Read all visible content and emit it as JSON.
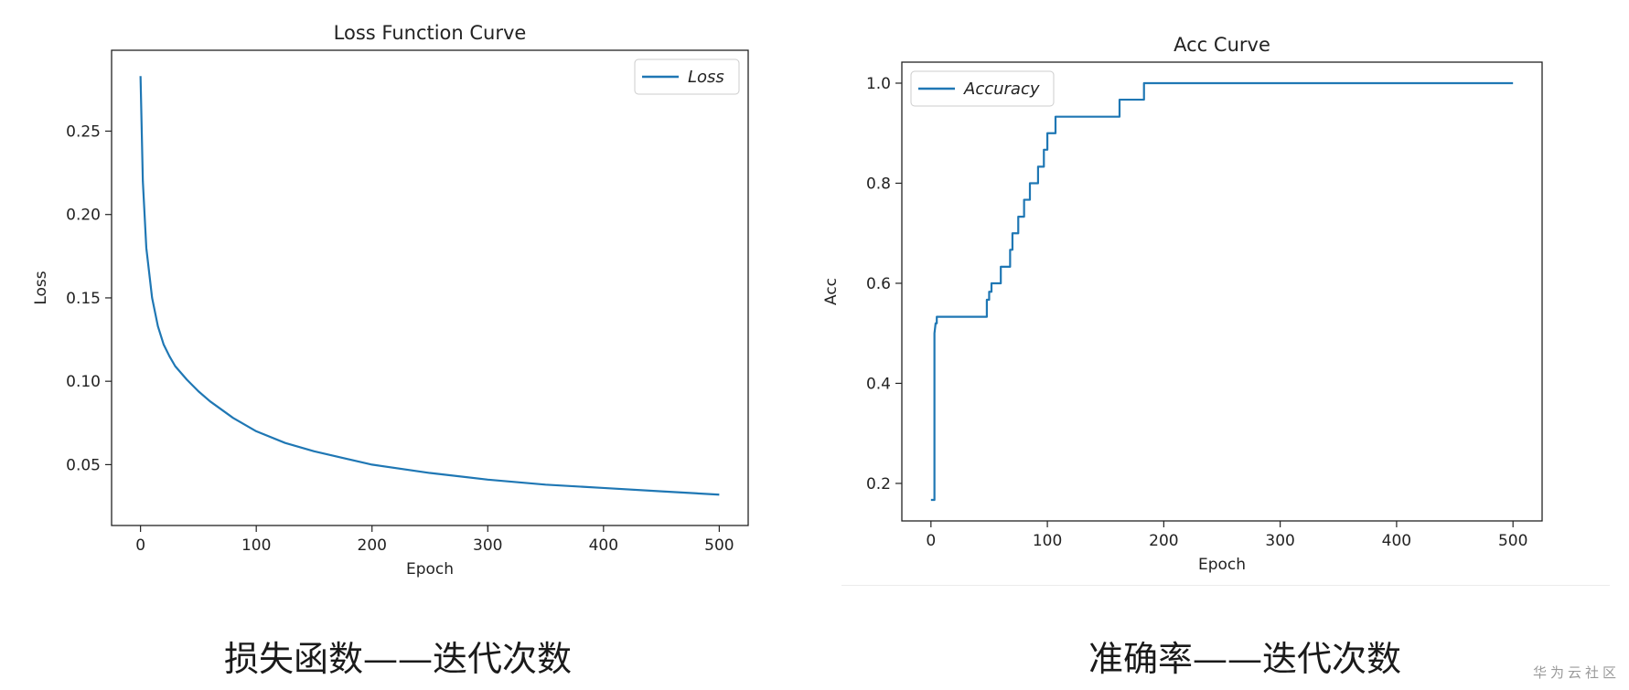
{
  "chart_data": [
    {
      "type": "line",
      "title": "Loss Function Curve",
      "xlabel": "Epoch",
      "ylabel": "Loss",
      "xlim": [
        -25,
        525
      ],
      "ylim": [
        0.0135,
        0.2985
      ],
      "xticks": [
        0,
        100,
        200,
        300,
        400,
        500
      ],
      "yticks": [
        0.05,
        0.1,
        0.15,
        0.2,
        0.25
      ],
      "ytick_labels": [
        "0.05",
        "0.10",
        "0.15",
        "0.20",
        "0.25"
      ],
      "grid": false,
      "legend": "upper right",
      "series": [
        {
          "name": "Loss",
          "color": "#1f77b4",
          "x": [
            0,
            2,
            5,
            10,
            15,
            20,
            25,
            30,
            40,
            50,
            60,
            80,
            100,
            125,
            150,
            200,
            250,
            300,
            350,
            400,
            450,
            500
          ],
          "y": [
            0.283,
            0.22,
            0.18,
            0.15,
            0.133,
            0.122,
            0.115,
            0.109,
            0.101,
            0.094,
            0.088,
            0.078,
            0.07,
            0.063,
            0.058,
            0.05,
            0.045,
            0.041,
            0.038,
            0.036,
            0.034,
            0.032
          ]
        }
      ]
    },
    {
      "type": "line",
      "title": "Acc Curve",
      "xlabel": "Epoch",
      "ylabel": "Acc",
      "xlim": [
        -25,
        525
      ],
      "ylim": [
        0.125,
        1.042
      ],
      "xticks": [
        0,
        100,
        200,
        300,
        400,
        500
      ],
      "yticks": [
        0.2,
        0.4,
        0.6,
        0.8,
        1.0
      ],
      "ytick_labels": [
        "0.2",
        "0.4",
        "0.6",
        "0.8",
        "1.0"
      ],
      "grid": false,
      "legend": "upper left",
      "series": [
        {
          "name": "Accuracy",
          "color": "#1f77b4",
          "x": [
            0,
            3,
            3,
            4,
            5,
            5,
            48,
            48,
            50,
            50,
            52,
            52,
            60,
            60,
            68,
            68,
            70,
            70,
            75,
            75,
            80,
            80,
            85,
            85,
            92,
            92,
            97,
            97,
            100,
            100,
            107,
            107,
            117,
            117,
            162,
            162,
            183,
            183,
            500
          ],
          "y": [
            0.167,
            0.167,
            0.5,
            0.52,
            0.52,
            0.533,
            0.533,
            0.567,
            0.567,
            0.583,
            0.583,
            0.6,
            0.6,
            0.633,
            0.633,
            0.667,
            0.667,
            0.7,
            0.7,
            0.733,
            0.733,
            0.767,
            0.767,
            0.8,
            0.8,
            0.833,
            0.833,
            0.867,
            0.867,
            0.9,
            0.9,
            0.933,
            0.933,
            0.933,
            0.933,
            0.967,
            0.967,
            1.0,
            1.0
          ]
        }
      ]
    }
  ],
  "captions": {
    "left": "损失函数——迭代次数",
    "right": "准确率——迭代次数"
  },
  "watermark": "华为云社区"
}
